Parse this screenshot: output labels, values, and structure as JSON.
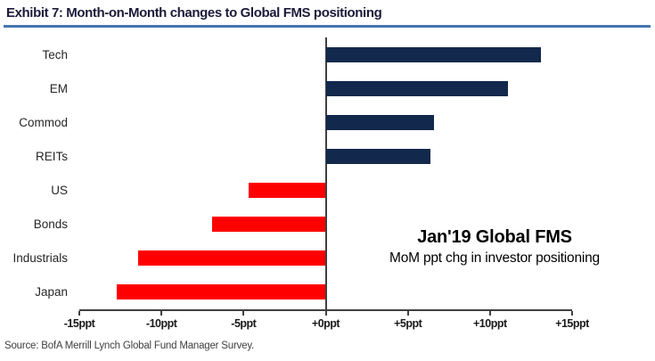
{
  "header": {
    "title": "Exhibit 7: Month-on-Month changes to Global FMS positioning"
  },
  "chart_data": {
    "type": "bar",
    "orientation": "horizontal",
    "title": "Jan'19 Global FMS",
    "subtitle": "MoM ppt chg in investor positioning",
    "categories": [
      "Tech",
      "EM",
      "Commod",
      "REITs",
      "US",
      "Bonds",
      "Industrials",
      "Japan"
    ],
    "values": [
      13.1,
      11.1,
      6.6,
      6.4,
      -4.7,
      -6.9,
      -11.4,
      -12.7
    ],
    "unit": "ppt",
    "xlim": [
      -15,
      15
    ],
    "x_ticks": [
      -15,
      -10,
      -5,
      0,
      5,
      10,
      15
    ],
    "x_tick_labels": [
      "-15ppt",
      "-10ppt",
      "-5ppt",
      "+0ppt",
      "+5ppt",
      "+10ppt",
      "+15ppt"
    ],
    "grid": false,
    "legend": false,
    "colors": {
      "positive_bar": "#12294d",
      "negative_bar": "#ff0000",
      "axis": "#404040"
    }
  },
  "annotation": {
    "line1": "Jan'19 Global FMS",
    "line2": "MoM ppt chg in investor positioning"
  },
  "footer": {
    "source": "Source: BofA Merrill Lynch Global Fund Manager Survey."
  },
  "colors": {
    "title_text": "#1b1b3a",
    "title_underline": "#4576b5"
  }
}
